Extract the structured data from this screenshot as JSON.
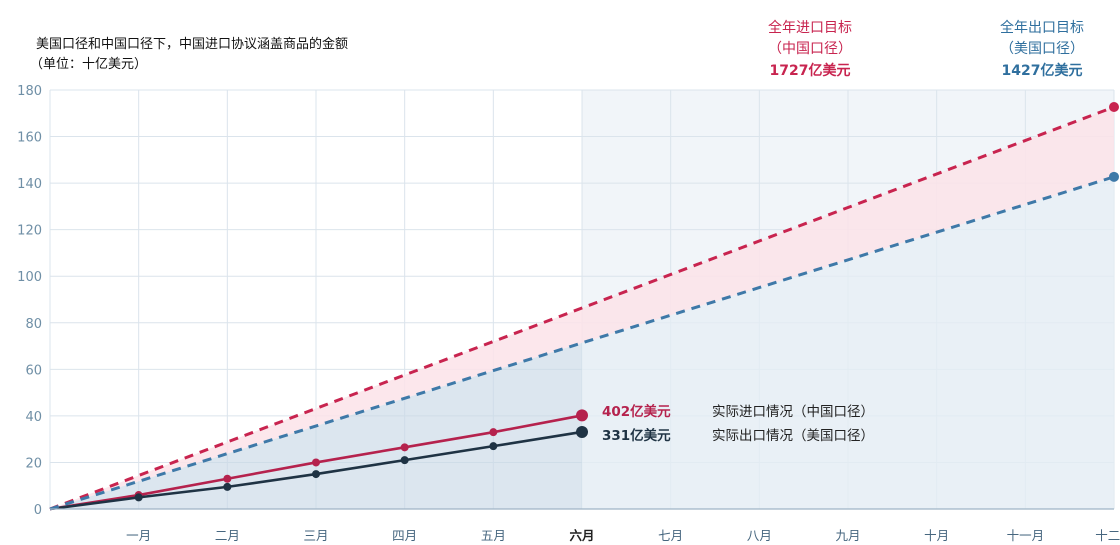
{
  "chart_data": {
    "type": "line",
    "title": "美国口径和中国口径下，中国进口协议涵盖商品的金额",
    "subtitle": "（单位：十亿美元）",
    "x": [
      "一月",
      "二月",
      "三月",
      "四月",
      "五月",
      "六月",
      "七月",
      "八月",
      "九月",
      "十月",
      "十一月",
      "十二月"
    ],
    "highlight_x": "六月",
    "ylim": [
      0,
      180
    ],
    "yticks": [
      0,
      20,
      40,
      60,
      80,
      100,
      120,
      140,
      160,
      180
    ],
    "series": [
      {
        "name": "实际进口情况（中国口径）",
        "color": "#b5224d",
        "style": "solid",
        "points": [
          [
            0,
            0
          ],
          [
            1,
            6
          ],
          [
            2,
            13
          ],
          [
            3,
            20
          ],
          [
            4,
            26.5
          ],
          [
            5,
            33
          ],
          [
            6,
            40.2
          ]
        ],
        "end_label": "402亿美元"
      },
      {
        "name": "实际出口情况（美国口径）",
        "color": "#1f3344",
        "style": "solid",
        "points": [
          [
            0,
            0
          ],
          [
            1,
            5
          ],
          [
            2,
            9.5
          ],
          [
            3,
            15
          ],
          [
            4,
            21
          ],
          [
            5,
            27
          ],
          [
            6,
            33.1
          ]
        ],
        "end_label": "331亿美元"
      },
      {
        "color": "#c8244f",
        "style": "dashed",
        "points": [
          [
            0,
            0
          ],
          [
            12,
            172.7
          ]
        ]
      },
      {
        "color": "#3e79a8",
        "style": "dashed",
        "points": [
          [
            0,
            0
          ],
          [
            12,
            142.7
          ]
        ]
      }
    ],
    "annotations": {
      "import_target": {
        "line1": "全年进口目标",
        "line2": "（中国口径）",
        "value": "1727亿美元",
        "color": "#c8244f"
      },
      "export_target": {
        "line1": "全年出口目标",
        "line2": "（美国口径）",
        "value": "1427亿美元",
        "color": "#2f6f9e"
      }
    }
  }
}
